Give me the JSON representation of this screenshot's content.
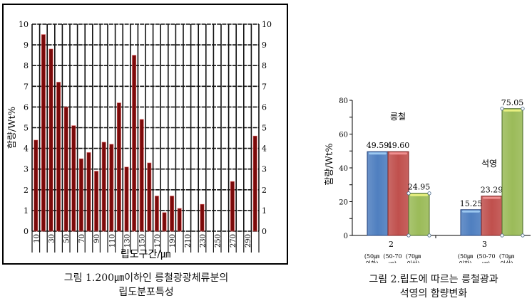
{
  "chart_data": [
    {
      "type": "bar",
      "title": "",
      "xlabel": "립도구간/㎛",
      "ylabel": "함량/Wt%",
      "ylim": [
        0,
        10
      ],
      "yticks": [
        0,
        1,
        2,
        3,
        4,
        5,
        6,
        7,
        8,
        9,
        10
      ],
      "grid": true,
      "dual_y_axis": true,
      "bar_color": "#7a0a0a",
      "categories": [
        10,
        20,
        30,
        40,
        50,
        60,
        70,
        80,
        90,
        100,
        110,
        120,
        130,
        140,
        150,
        160,
        170,
        180,
        190,
        200,
        210,
        220,
        230,
        240,
        250,
        260,
        270,
        280,
        290,
        300
      ],
      "tick_labels": [
        "10",
        "30",
        "50",
        "70",
        "90",
        "110",
        "130",
        "150",
        "170",
        "190",
        "210",
        "230",
        "250",
        "270",
        "290"
      ],
      "values": [
        4.4,
        9.5,
        8.8,
        7.2,
        6.0,
        5.1,
        3.5,
        3.8,
        2.9,
        4.3,
        4.2,
        6.2,
        3.1,
        8.5,
        5.4,
        3.3,
        1.7,
        0.9,
        1.7,
        1.1,
        0,
        0,
        1.3,
        0,
        0,
        0,
        2.4,
        0,
        0,
        4.6
      ]
    },
    {
      "type": "bar",
      "title": "",
      "xlabel": "",
      "ylabel": "함량/Wt%",
      "ylim": [
        0,
        80
      ],
      "yticks": [
        0,
        20,
        40,
        60,
        80
      ],
      "grid": false,
      "categories": [
        "2",
        "3"
      ],
      "bar_sublabels": [
        "(50㎛ 이하)",
        "(50-70 ㎛)",
        "(70㎛ 이상)"
      ],
      "series": [
        {
          "name": "(50㎛ 이하)",
          "color": "#4f7fc0",
          "values": [
            49.59,
            15.25
          ]
        },
        {
          "name": "(50-70 ㎛)",
          "color": "#c0504d",
          "values": [
            49.6,
            23.29
          ]
        },
        {
          "name": "(70㎛ 이상)",
          "color": "#9bbb59",
          "values": [
            24.95,
            75.05
          ]
        }
      ],
      "annotations": [
        "릉철",
        "석영"
      ]
    }
  ],
  "figure1": {
    "ylabel": "함량/Wt%",
    "xlabel": "립도구간/㎛",
    "caption_line1": "그림 1.200㎛이하인 릉철광광체류분의",
    "caption_line2": "립도분포특성"
  },
  "figure2": {
    "ylabel": "함량/Wt%",
    "annot_left": "릉철",
    "annot_right": "석영",
    "group_labels": [
      "2",
      "3"
    ],
    "sub_line1": [
      "(50㎛",
      "(50-70",
      "(70㎛"
    ],
    "sub_line2": [
      "이하)",
      "㎛)",
      "이상)"
    ],
    "caption_line1": "그림 2.립도에 따르는 릉철광과",
    "caption_line2": "석영의 함량변화"
  }
}
